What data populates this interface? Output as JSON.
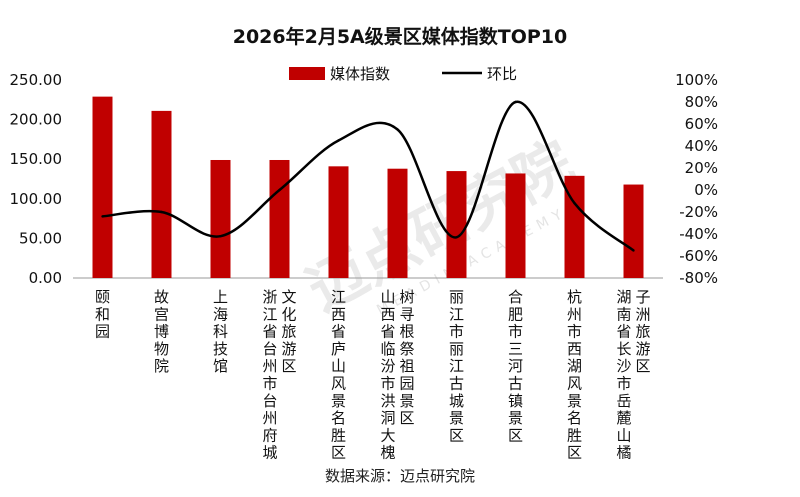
{
  "chart_data": {
    "type": "bar",
    "title": "2026年2月5A级景区媒体指数TOP10",
    "categories": [
      [
        "颐和园"
      ],
      [
        "故宫博物院"
      ],
      [
        "上海科技馆"
      ],
      [
        "浙江省台州市台州府城",
        "文化旅游区"
      ],
      [
        "江西省庐山风景名胜区"
      ],
      [
        "山西省临汾市洪洞大槐",
        "树寻根祭祖园景区"
      ],
      [
        "丽江市丽江古城景区"
      ],
      [
        "合肥市三河古镇景区"
      ],
      [
        "杭州市西湖风景名胜区"
      ],
      [
        "湖南省长沙市岳麓山橘",
        "子洲旅游区"
      ]
    ],
    "series": [
      {
        "name": "媒体指数",
        "type": "bar",
        "axis": "left",
        "color": "#c00000",
        "values": [
          229,
          211,
          149,
          149,
          141,
          138,
          135,
          132,
          129,
          118
        ]
      },
      {
        "name": "环比",
        "type": "line",
        "axis": "right",
        "color": "#000000",
        "values": [
          -24,
          -20,
          -42,
          0,
          45,
          55,
          -43,
          80,
          -12,
          -55
        ]
      }
    ],
    "y_left": {
      "min": 0,
      "max": 250,
      "step": 50,
      "tick_labels": [
        "0.00",
        "50.00",
        "100.00",
        "150.00",
        "200.00",
        "250.00"
      ]
    },
    "y_right": {
      "min": -80,
      "max": 100,
      "step": 20,
      "tick_labels": [
        "-80%",
        "-60%",
        "-40%",
        "-20%",
        "0%",
        "20%",
        "40%",
        "60%",
        "80%",
        "100%"
      ]
    },
    "legend_position": "top-center",
    "grid": false
  },
  "source_text": "数据来源：迈点研究院",
  "watermark": {
    "main": "迈点研究院",
    "sub": "MEADIN ACADEMY"
  }
}
